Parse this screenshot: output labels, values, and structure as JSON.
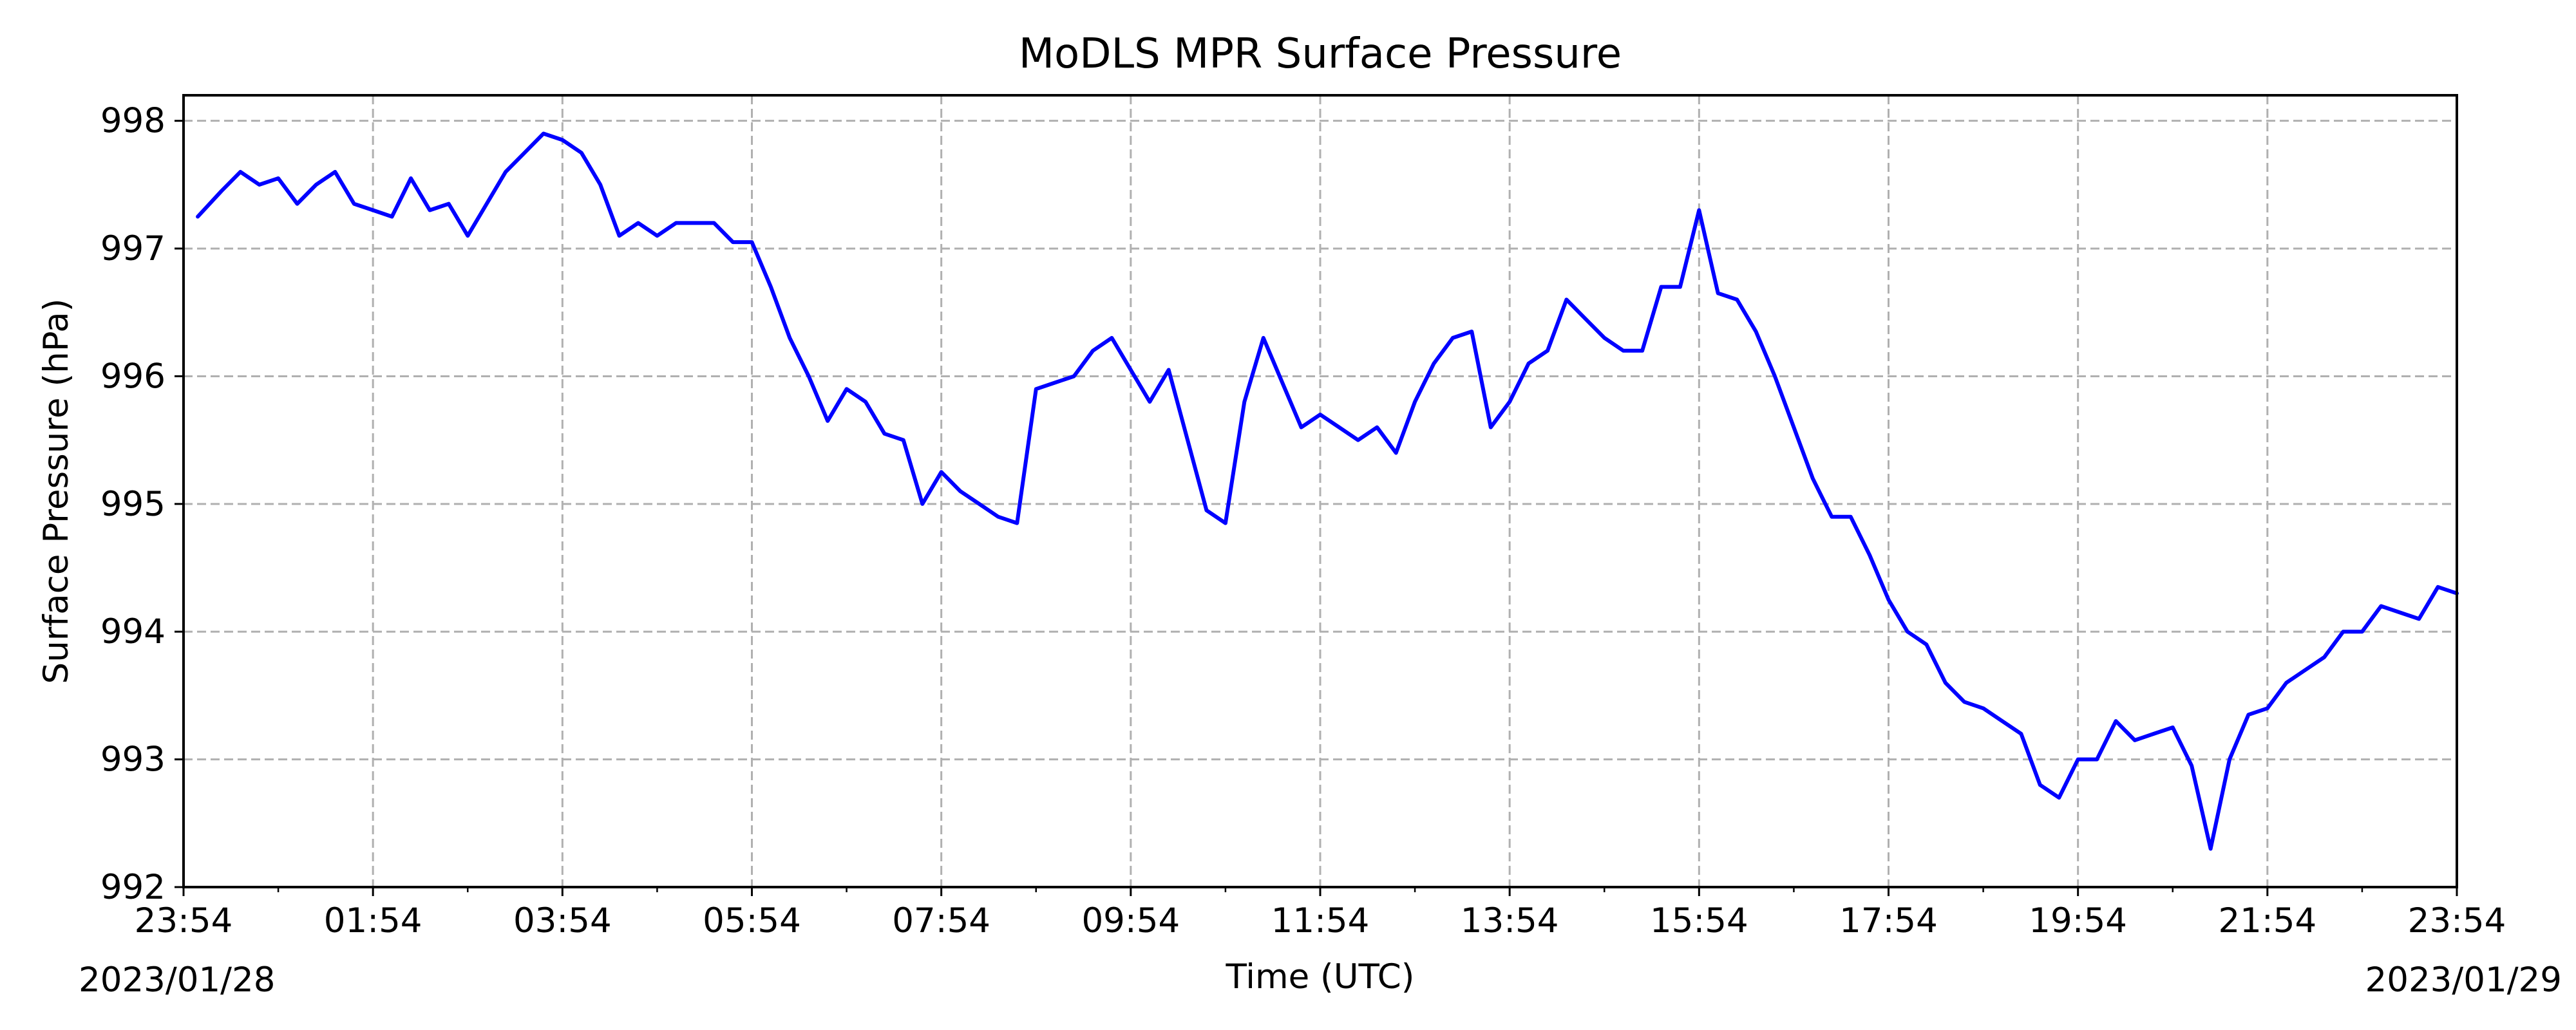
{
  "chart_data": {
    "type": "line",
    "title": "MoDLS MPR Surface Pressure",
    "xlabel": "Time (UTC)",
    "ylabel": "Surface Pressure (hPa)",
    "ylim": [
      992,
      998.2
    ],
    "xlim_hours": [
      0,
      24
    ],
    "x_tick_labels": [
      "23:54",
      "01:54",
      "03:54",
      "05:54",
      "07:54",
      "09:54",
      "11:54",
      "13:54",
      "15:54",
      "17:54",
      "19:54",
      "21:54",
      "23:54"
    ],
    "y_tick_labels": [
      "992",
      "993",
      "994",
      "995",
      "996",
      "997",
      "998"
    ],
    "start_date": "2023/01/28",
    "end_date": "2023/01/29",
    "grid": true,
    "line_color": "#0000ff",
    "series": [
      {
        "x": [
          0.15,
          0.4,
          0.6,
          0.8,
          1.0,
          1.2,
          1.4,
          1.6,
          1.8,
          2.0,
          2.2,
          2.4,
          2.6,
          2.8,
          3.0,
          3.2,
          3.4,
          3.6,
          3.8,
          4.0,
          4.2,
          4.4,
          4.6,
          4.8,
          5.0,
          5.2,
          5.4,
          5.6,
          5.8,
          6.0,
          6.2,
          6.4,
          6.6,
          6.8,
          7.0,
          7.2,
          7.4,
          7.6,
          7.8,
          8.0,
          8.2,
          8.4,
          8.6,
          8.8,
          9.0,
          9.2,
          9.4,
          9.6,
          9.8,
          10.0,
          10.2,
          10.4,
          10.6,
          10.8,
          11.0,
          11.2,
          11.4,
          11.6,
          11.8,
          12.0,
          12.2,
          12.4,
          12.6,
          12.8,
          13.0,
          13.2,
          13.4,
          13.6,
          13.8,
          14.0,
          14.2,
          14.4,
          14.6,
          14.8,
          15.0,
          15.2,
          15.4,
          15.6,
          15.8,
          16.0,
          16.2,
          16.4,
          16.6,
          16.8,
          17.0,
          17.2,
          17.4,
          17.6,
          17.8,
          18.0,
          18.2,
          18.4,
          18.6,
          18.8,
          19.0,
          19.2,
          19.4,
          19.6,
          19.8,
          20.0,
          20.2,
          20.4,
          20.6,
          20.8,
          21.0,
          21.2,
          21.4,
          21.6,
          21.8,
          22.0,
          22.2,
          22.4,
          22.6,
          22.8,
          23.0,
          23.2,
          23.4,
          23.6,
          23.8,
          24.0
        ],
        "y": [
          997.25,
          997.45,
          997.6,
          997.5,
          997.55,
          997.35,
          997.5,
          997.6,
          997.35,
          997.3,
          997.25,
          997.55,
          997.3,
          997.35,
          997.1,
          997.35,
          997.6,
          997.75,
          997.9,
          997.85,
          997.75,
          997.5,
          997.1,
          997.2,
          997.1,
          997.2,
          997.2,
          997.2,
          997.05,
          997.05,
          996.7,
          996.3,
          996.0,
          995.65,
          995.9,
          995.8,
          995.55,
          995.5,
          995.0,
          995.25,
          995.1,
          995.0,
          994.9,
          994.85,
          995.9,
          995.95,
          996.0,
          996.2,
          996.3,
          996.05,
          995.8,
          996.05,
          995.5,
          994.95,
          994.85,
          995.8,
          996.3,
          995.95,
          995.6,
          995.7,
          995.6,
          995.5,
          995.6,
          995.4,
          995.8,
          996.1,
          996.3,
          996.35,
          995.6,
          995.8,
          996.1,
          996.2,
          996.6,
          996.45,
          996.3,
          996.2,
          996.2,
          996.7,
          996.7,
          997.3,
          996.65,
          996.6,
          996.35,
          996.0,
          995.6,
          995.2,
          994.9,
          994.9,
          994.6,
          994.25,
          994.0,
          993.9,
          993.6,
          993.45,
          993.4,
          993.3,
          993.2,
          992.8,
          992.7,
          993.0,
          993.0,
          993.3,
          993.15,
          993.2,
          993.25,
          992.95,
          992.3,
          993.0,
          993.35,
          993.4,
          993.6,
          993.7,
          993.8,
          994.0,
          994.0,
          994.2,
          994.15,
          994.1,
          994.35,
          994.3
        ]
      }
    ]
  }
}
